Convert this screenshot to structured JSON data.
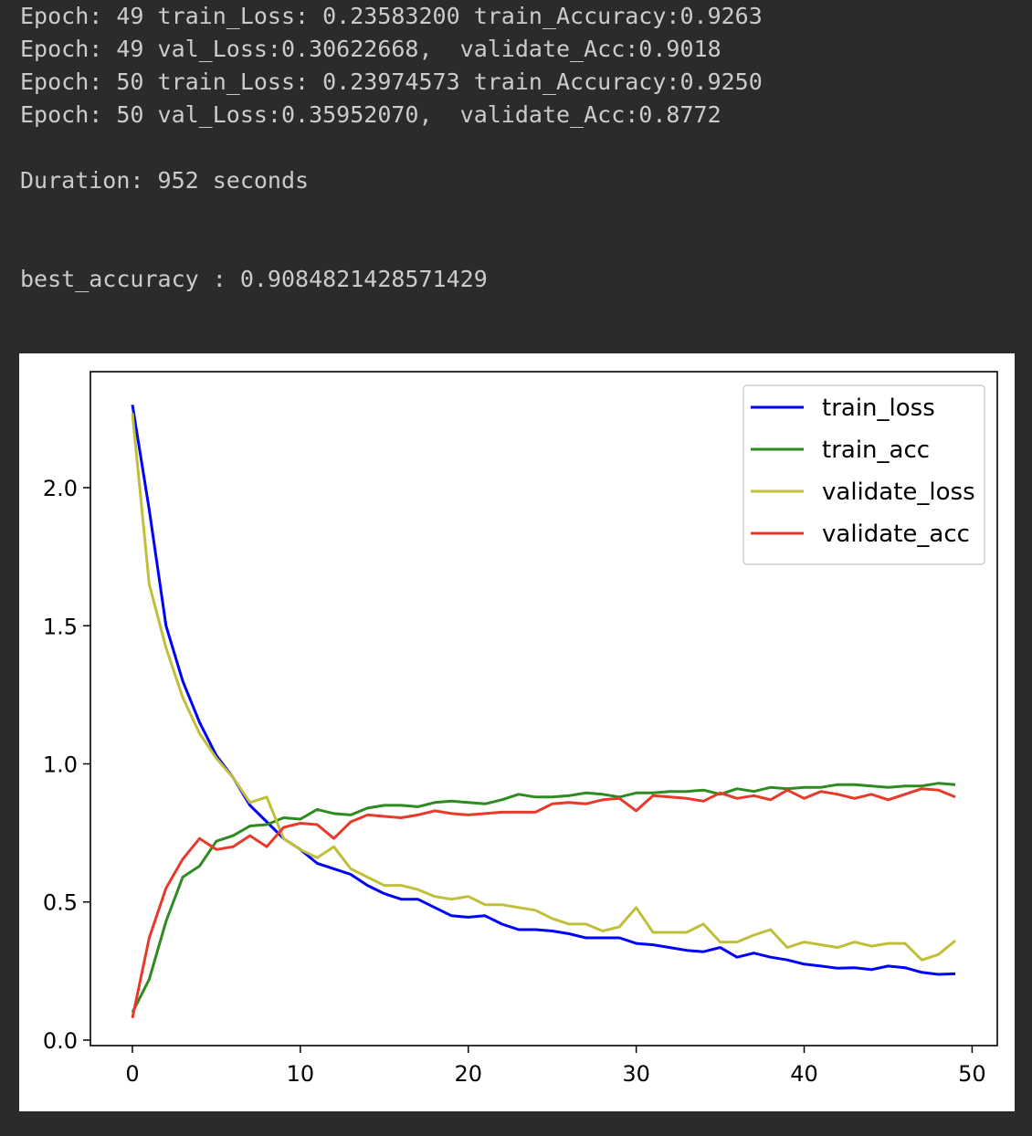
{
  "console": {
    "lines": [
      "Epoch: 49 train_Loss: 0.23583200 train_Accuracy:0.9263",
      "Epoch: 49 val_Loss:0.30622668,  validate_Acc:0.9018",
      "Epoch: 50 train_Loss: 0.23974573 train_Accuracy:0.9250",
      "Epoch: 50 val_Loss:0.35952070,  validate_Acc:0.8772",
      "",
      "Duration: 952 seconds",
      "",
      "",
      "best_accuracy : 0.9084821428571429"
    ]
  },
  "chart_data": {
    "type": "line",
    "title": "",
    "xlabel": "",
    "ylabel": "",
    "xlim": [
      -2.5,
      51.5
    ],
    "ylim": [
      -0.02,
      2.42
    ],
    "xticks": [
      0,
      10,
      20,
      30,
      40,
      50
    ],
    "yticks": [
      0.0,
      0.5,
      1.0,
      1.5,
      2.0
    ],
    "xtick_labels": [
      "0",
      "10",
      "20",
      "30",
      "40",
      "50"
    ],
    "ytick_labels": [
      "0.0",
      "0.5",
      "1.0",
      "1.5",
      "2.0"
    ],
    "grid": false,
    "legend_position": "top-right",
    "x": [
      0,
      1,
      2,
      3,
      4,
      5,
      6,
      7,
      8,
      9,
      10,
      11,
      12,
      13,
      14,
      15,
      16,
      17,
      18,
      19,
      20,
      21,
      22,
      23,
      24,
      25,
      26,
      27,
      28,
      29,
      30,
      31,
      32,
      33,
      34,
      35,
      36,
      37,
      38,
      39,
      40,
      41,
      42,
      43,
      44,
      45,
      46,
      47,
      48,
      49
    ],
    "series": [
      {
        "name": "train_loss",
        "color": "#0000ff",
        "values": [
          2.3,
          1.92,
          1.5,
          1.3,
          1.15,
          1.03,
          0.95,
          0.85,
          0.79,
          0.73,
          0.69,
          0.64,
          0.62,
          0.6,
          0.56,
          0.53,
          0.51,
          0.51,
          0.48,
          0.45,
          0.445,
          0.45,
          0.42,
          0.4,
          0.4,
          0.395,
          0.385,
          0.37,
          0.37,
          0.37,
          0.35,
          0.345,
          0.335,
          0.325,
          0.32,
          0.335,
          0.3,
          0.315,
          0.3,
          0.29,
          0.275,
          0.268,
          0.26,
          0.262,
          0.255,
          0.268,
          0.262,
          0.245,
          0.238,
          0.24
        ]
      },
      {
        "name": "train_acc",
        "color": "#2e8b1f",
        "values": [
          0.1,
          0.22,
          0.43,
          0.59,
          0.63,
          0.72,
          0.74,
          0.775,
          0.78,
          0.805,
          0.8,
          0.835,
          0.82,
          0.815,
          0.84,
          0.85,
          0.85,
          0.845,
          0.86,
          0.865,
          0.86,
          0.855,
          0.87,
          0.89,
          0.88,
          0.88,
          0.885,
          0.895,
          0.89,
          0.88,
          0.895,
          0.895,
          0.9,
          0.9,
          0.905,
          0.89,
          0.91,
          0.9,
          0.915,
          0.91,
          0.915,
          0.915,
          0.925,
          0.925,
          0.92,
          0.915,
          0.92,
          0.92,
          0.93,
          0.925
        ]
      },
      {
        "name": "validate_loss",
        "color": "#bfbf3a",
        "values": [
          2.27,
          1.65,
          1.42,
          1.24,
          1.11,
          1.02,
          0.95,
          0.86,
          0.88,
          0.73,
          0.69,
          0.66,
          0.7,
          0.62,
          0.59,
          0.56,
          0.56,
          0.545,
          0.52,
          0.51,
          0.52,
          0.49,
          0.49,
          0.48,
          0.47,
          0.44,
          0.42,
          0.42,
          0.395,
          0.41,
          0.48,
          0.39,
          0.39,
          0.39,
          0.42,
          0.355,
          0.355,
          0.38,
          0.4,
          0.335,
          0.355,
          0.345,
          0.335,
          0.355,
          0.34,
          0.35,
          0.35,
          0.29,
          0.31,
          0.36
        ]
      },
      {
        "name": "validate_acc",
        "color": "#e8392b",
        "values": [
          0.08,
          0.37,
          0.55,
          0.655,
          0.73,
          0.69,
          0.7,
          0.74,
          0.7,
          0.77,
          0.785,
          0.78,
          0.73,
          0.79,
          0.815,
          0.81,
          0.805,
          0.815,
          0.83,
          0.82,
          0.815,
          0.82,
          0.825,
          0.825,
          0.825,
          0.855,
          0.86,
          0.855,
          0.87,
          0.875,
          0.83,
          0.885,
          0.88,
          0.875,
          0.865,
          0.895,
          0.875,
          0.885,
          0.87,
          0.905,
          0.875,
          0.9,
          0.89,
          0.875,
          0.89,
          0.87,
          0.89,
          0.91,
          0.905,
          0.88
        ]
      }
    ]
  }
}
